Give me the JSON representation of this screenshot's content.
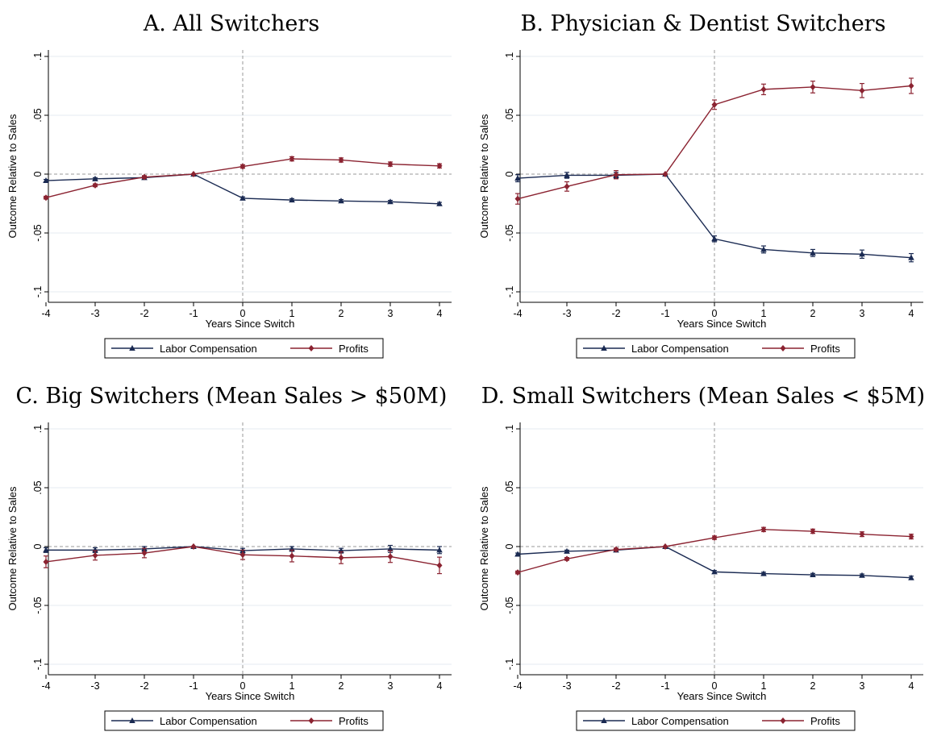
{
  "colors": {
    "labor": "#1a2a52",
    "profits": "#8b2331",
    "grid": "#e6ebf0",
    "refline": "#9a9a9a"
  },
  "legend": {
    "labor": "Labor Compensation",
    "profits": "Profits"
  },
  "axes": {
    "xlabel": "Years Since Switch",
    "ylabel": "Outcome Relative to Sales",
    "xticks": [
      "-4",
      "-3",
      "-2",
      "-1",
      "0",
      "1",
      "2",
      "3",
      "4"
    ],
    "yticks": [
      ".1",
      ".05",
      "0",
      "-.05",
      "-.1"
    ]
  },
  "chart_data": [
    {
      "type": "line",
      "title": "A. All Switchers",
      "x": [
        -4,
        -3,
        -2,
        -1,
        0,
        1,
        2,
        3,
        4
      ],
      "xlabel": "Years Since Switch",
      "ylabel": "Outcome Relative to Sales",
      "xlim": [
        -4,
        4
      ],
      "ylim": [
        -0.1,
        0.1
      ],
      "grid": true,
      "legend_position": "bottom",
      "series": [
        {
          "name": "Labor Compensation",
          "marker": "triangle",
          "values": [
            -0.0055,
            -0.004,
            -0.003,
            0,
            -0.0205,
            -0.022,
            -0.0228,
            -0.0235,
            -0.0252
          ],
          "ci": [
            0.001,
            0.001,
            0.001,
            0,
            0.0012,
            0.0012,
            0.0012,
            0.0012,
            0.0012
          ]
        },
        {
          "name": "Profits",
          "marker": "diamond",
          "values": [
            -0.02,
            -0.0095,
            -0.0025,
            0,
            0.0065,
            0.013,
            0.012,
            0.0085,
            0.007
          ],
          "ci": [
            0.0012,
            0.0012,
            0.0012,
            0,
            0.0015,
            0.0018,
            0.0018,
            0.0018,
            0.0018
          ]
        }
      ]
    },
    {
      "type": "line",
      "title": "B. Physician & Dentist Switchers",
      "x": [
        -4,
        -3,
        -2,
        -1,
        0,
        1,
        2,
        3,
        4
      ],
      "xlabel": "Years Since Switch",
      "ylabel": "Outcome Relative to Sales",
      "xlim": [
        -4,
        4
      ],
      "ylim": [
        -0.1,
        0.1
      ],
      "grid": true,
      "legend_position": "bottom",
      "series": [
        {
          "name": "Labor Compensation",
          "marker": "triangle",
          "values": [
            -0.0035,
            -0.001,
            -0.001,
            0,
            -0.055,
            -0.064,
            -0.067,
            -0.068,
            -0.071
          ],
          "ci": [
            0.003,
            0.0025,
            0.0025,
            0,
            0.0025,
            0.003,
            0.003,
            0.0035,
            0.0035
          ]
        },
        {
          "name": "Profits",
          "marker": "diamond",
          "values": [
            -0.021,
            -0.0105,
            -0.0005,
            0,
            0.059,
            0.072,
            0.074,
            0.071,
            0.075
          ],
          "ci": [
            0.0045,
            0.004,
            0.0035,
            0,
            0.004,
            0.0045,
            0.005,
            0.006,
            0.0065
          ]
        }
      ]
    },
    {
      "type": "line",
      "title": "C. Big Switchers (Mean Sales > $50M)",
      "x": [
        -4,
        -3,
        -2,
        -1,
        0,
        1,
        2,
        3,
        4
      ],
      "xlabel": "Years Since Switch",
      "ylabel": "Outcome Relative to Sales",
      "xlim": [
        -4,
        4
      ],
      "ylim": [
        -0.1,
        0.1
      ],
      "grid": true,
      "legend_position": "bottom",
      "series": [
        {
          "name": "Labor Compensation",
          "marker": "triangle",
          "values": [
            -0.003,
            -0.003,
            -0.002,
            0,
            -0.0035,
            -0.002,
            -0.0035,
            -0.002,
            -0.003
          ],
          "ci": [
            0.002,
            0.002,
            0.002,
            0,
            0.002,
            0.002,
            0.002,
            0.003,
            0.003
          ]
        },
        {
          "name": "Profits",
          "marker": "diamond",
          "values": [
            -0.013,
            -0.0075,
            -0.0055,
            0,
            -0.007,
            -0.008,
            -0.0095,
            -0.0085,
            -0.016
          ],
          "ci": [
            0.005,
            0.004,
            0.004,
            0,
            0.004,
            0.005,
            0.005,
            0.005,
            0.007
          ]
        }
      ]
    },
    {
      "type": "line",
      "title": "D. Small Switchers (Mean Sales < $5M)",
      "x": [
        -4,
        -3,
        -2,
        -1,
        0,
        1,
        2,
        3,
        4
      ],
      "xlabel": "Years Since Switch",
      "ylabel": "Outcome Relative to Sales",
      "xlim": [
        -4,
        4
      ],
      "ylim": [
        -0.1,
        0.1
      ],
      "grid": true,
      "legend_position": "bottom",
      "series": [
        {
          "name": "Labor Compensation",
          "marker": "triangle",
          "values": [
            -0.0065,
            -0.004,
            -0.003,
            0,
            -0.0215,
            -0.023,
            -0.024,
            -0.0245,
            -0.0265
          ],
          "ci": [
            0.001,
            0.001,
            0.001,
            0,
            0.0012,
            0.0012,
            0.0012,
            0.0012,
            0.0014
          ]
        },
        {
          "name": "Profits",
          "marker": "diamond",
          "values": [
            -0.022,
            -0.0105,
            -0.0025,
            0,
            0.0075,
            0.0145,
            0.013,
            0.0105,
            0.0085
          ],
          "ci": [
            0.0012,
            0.0012,
            0.0012,
            0,
            0.0015,
            0.0018,
            0.0018,
            0.002,
            0.002
          ]
        }
      ]
    }
  ]
}
